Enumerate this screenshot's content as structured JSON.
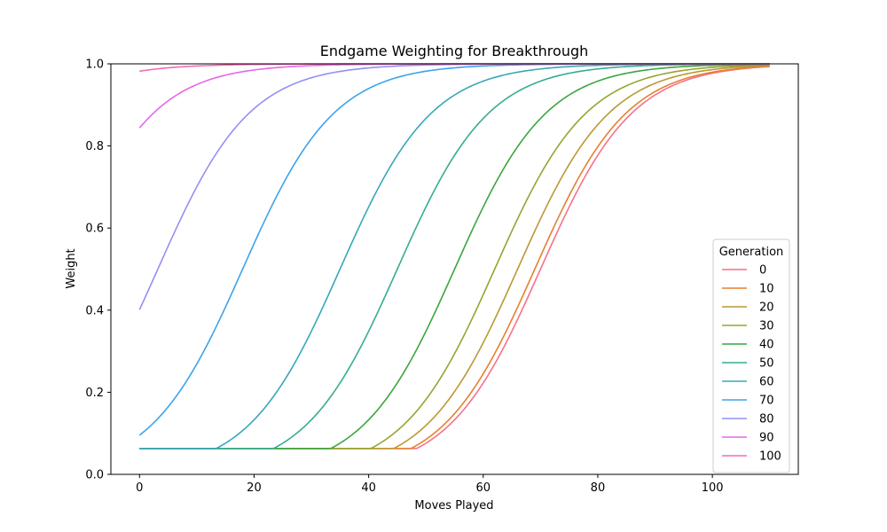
{
  "chart_data": {
    "type": "line",
    "title": "Endgame Weighting for Breakthrough",
    "xlabel": "Moves Played",
    "ylabel": "Weight",
    "xlim": [
      -5,
      115
    ],
    "ylim": [
      0.0,
      1.0
    ],
    "xticks": [
      0,
      20,
      40,
      60,
      80,
      100
    ],
    "yticks": [
      0.0,
      0.2,
      0.4,
      0.6,
      0.8,
      1.0
    ],
    "grid": false,
    "legend": {
      "title": "Generation",
      "placement": "lower-right"
    },
    "x_range": [
      0,
      110
    ],
    "y_floor": 0.063,
    "series": [
      {
        "name": "0",
        "color": "#f77189",
        "midpoint": 70.0,
        "steepness": 0.125
      },
      {
        "name": "10",
        "color": "#e5802f",
        "midpoint": 69.0,
        "steepness": 0.125
      },
      {
        "name": "20",
        "color": "#bb9832",
        "midpoint": 66.0,
        "steepness": 0.125
      },
      {
        "name": "30",
        "color": "#97a431",
        "midpoint": 62.0,
        "steepness": 0.125
      },
      {
        "name": "40",
        "color": "#3ba53e",
        "midpoint": 55.0,
        "steepness": 0.125
      },
      {
        "name": "50",
        "color": "#35ac93",
        "midpoint": 45.0,
        "steepness": 0.125
      },
      {
        "name": "60",
        "color": "#36a8b8",
        "midpoint": 35.0,
        "steepness": 0.125
      },
      {
        "name": "70",
        "color": "#3ba3ec",
        "midpoint": 18.0,
        "steepness": 0.125
      },
      {
        "name": "80",
        "color": "#9490f4",
        "midpoint": 3.2,
        "steepness": 0.125
      },
      {
        "name": "90",
        "color": "#e468e8",
        "midpoint": -13.5,
        "steepness": 0.125
      },
      {
        "name": "100",
        "color": "#f569b7",
        "midpoint": -32.0,
        "steepness": 0.125
      }
    ]
  }
}
